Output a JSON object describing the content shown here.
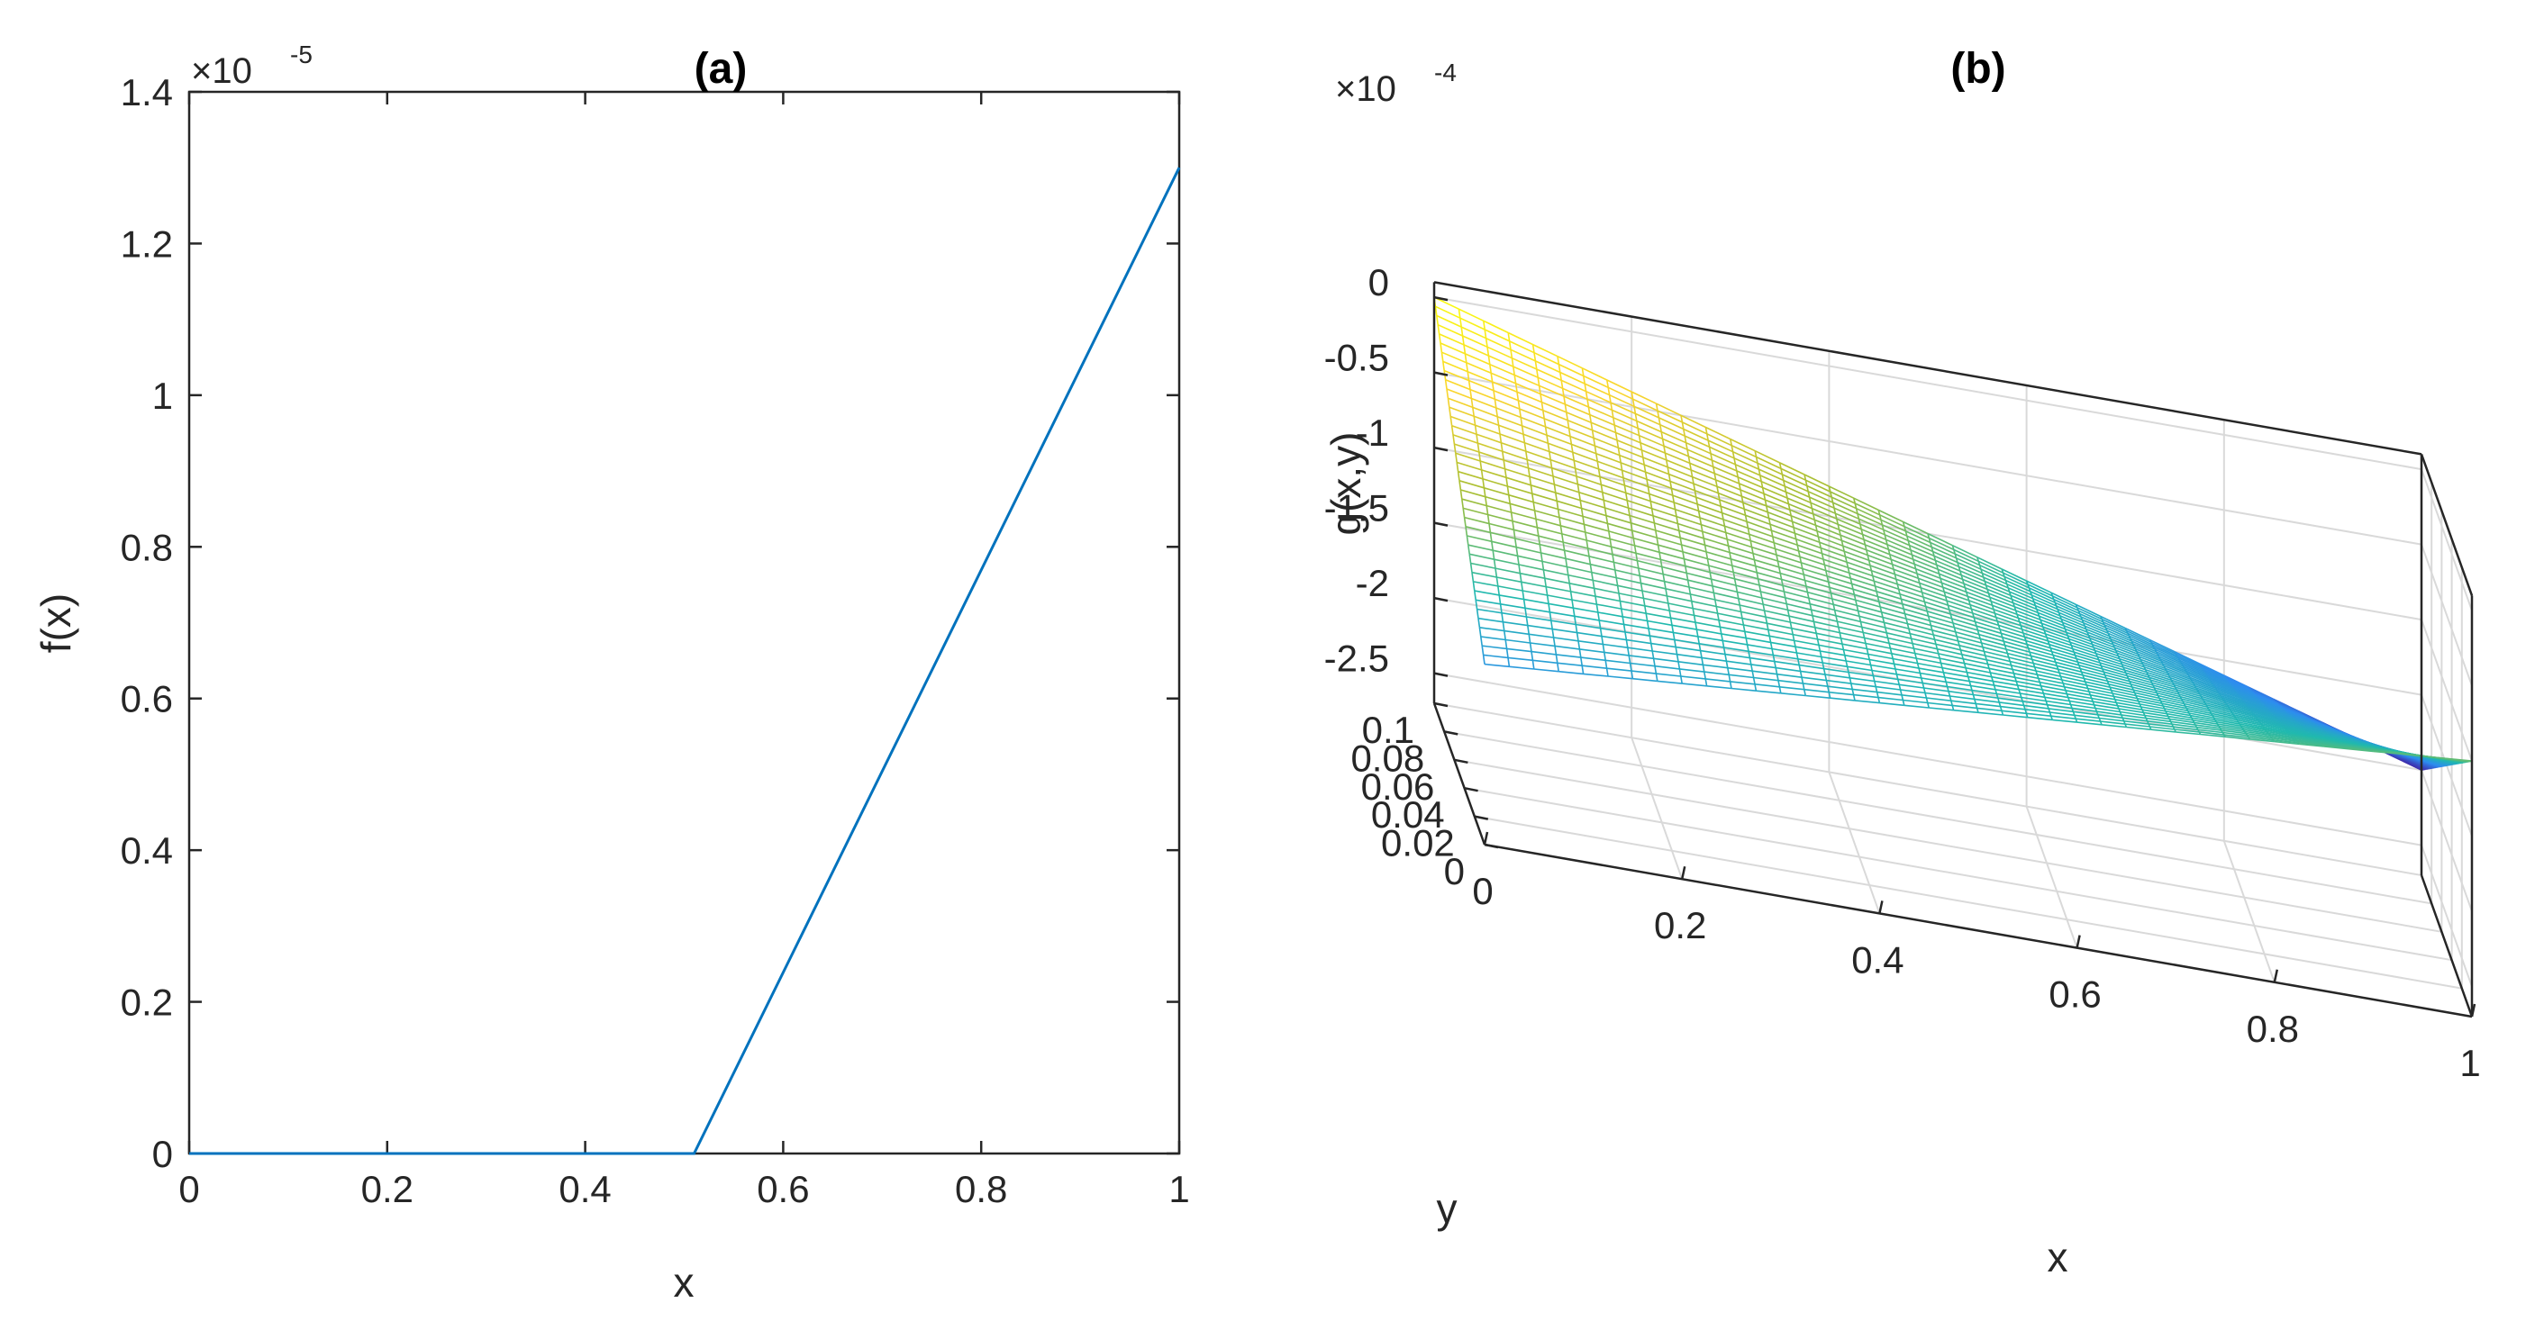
{
  "chart_data": [
    {
      "type": "line",
      "panel": "(a)",
      "title": "(a)",
      "xlabel": "x",
      "ylabel": "f(x)",
      "xlim": [
        0,
        1
      ],
      "ylim": [
        0,
        1.4
      ],
      "xticks": [
        "0",
        "0.2",
        "0.4",
        "0.6",
        "0.8",
        "1"
      ],
      "yticks": [
        "0",
        "0.2",
        "0.4",
        "0.6",
        "0.8",
        "1",
        "1.2",
        "1.4"
      ],
      "y_multiplier_base": "×10",
      "y_multiplier_exponent": "-5",
      "series": [
        {
          "name": "f(x)",
          "color": "#0072BD",
          "x": [
            0,
            0.51,
            1
          ],
          "y": [
            0,
            0,
            1.3
          ]
        }
      ]
    },
    {
      "type": "surface-mesh",
      "panel": "(b)",
      "title": "(b)",
      "xlabel": "x",
      "ylabel": "y",
      "zlabel": "g(x,y)",
      "xlim": [
        0,
        1
      ],
      "ylim": [
        0,
        0.1
      ],
      "zlim": [
        -2.7,
        0.1
      ],
      "xticks": [
        "0",
        "0.2",
        "0.4",
        "0.6",
        "0.8",
        "1"
      ],
      "yticks": [
        "0",
        "0.02",
        "0.04",
        "0.06",
        "0.08",
        "0.1"
      ],
      "zticks": [
        "0",
        "-0.5",
        "-1",
        "-1.5",
        "-2",
        "-2.5"
      ],
      "z_multiplier_base": "×10",
      "z_multiplier_exponent": "-4",
      "corner_values": {
        "x0_y0": -1.5,
        "x1_y0": -1.0,
        "x0_y01": 0.0,
        "x1_y01": -2.0
      },
      "colormap": [
        "#3e26a8",
        "#2e8cf0",
        "#20b9ae",
        "#a5be33",
        "#f9d42d",
        "#f9fb0e"
      ]
    }
  ]
}
